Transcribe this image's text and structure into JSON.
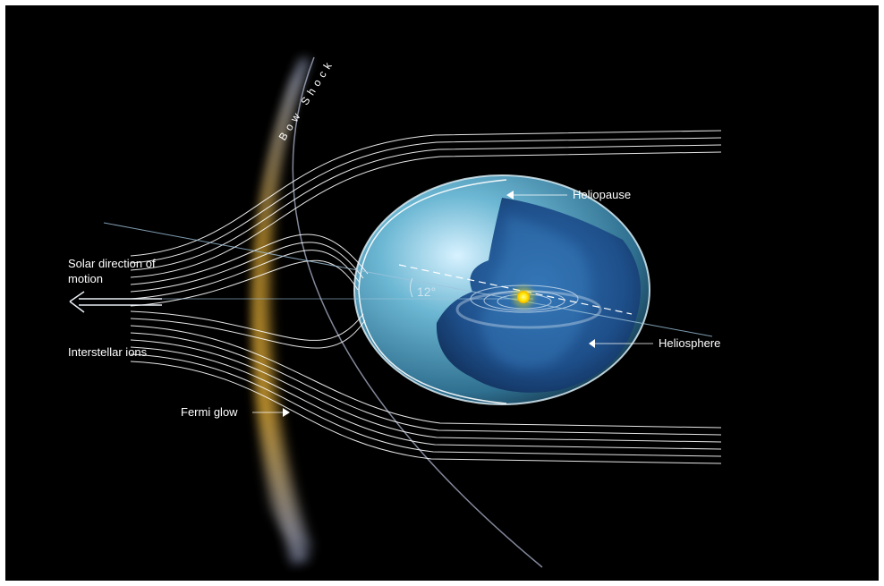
{
  "labels": {
    "bow_shock": "Bow Shock",
    "heliopause": "Heliopause",
    "solar_direction_line1": "Solar direction of",
    "solar_direction_line2": "motion",
    "interstellar_ions": "Interstellar ions",
    "fermi_glow": "Fermi glow",
    "heliosphere": "Heliosphere",
    "angle": "12°"
  },
  "colors": {
    "background": "#000000",
    "bow_shock_glow": "#e8b23a",
    "heliosheath": "#4f9fc0",
    "heliosphere": "#2f6fb0",
    "sun": "#ffe600",
    "field_lines": "#ffffff"
  }
}
